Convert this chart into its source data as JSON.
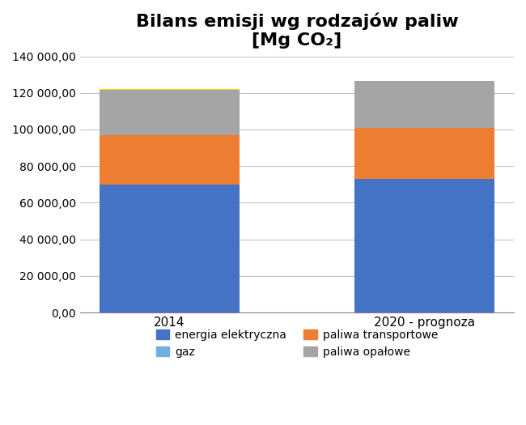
{
  "categories": [
    "2014",
    "2020 - prognoza"
  ],
  "energia_elektryczna": [
    70000,
    73000
  ],
  "gaz": [
    500,
    0
  ],
  "paliwa_transportowe": [
    27000,
    28000
  ],
  "paliwa_opalowe": [
    24500,
    25500
  ],
  "colors": {
    "energia_elektryczna": "#4472C4",
    "gaz": "#70AD47",
    "paliwa_transportowe": "#ED7D31",
    "paliwa_opalowe": "#A5A5A5"
  },
  "gaz_legend_color": "#70B0E0",
  "title_line1": "Bilans emisji wg rodzajów paliw",
  "title_line2": "[Mg CO₂]",
  "ylim": [
    0,
    140000
  ],
  "yticks": [
    0,
    20000,
    40000,
    60000,
    80000,
    100000,
    120000,
    140000
  ],
  "ytick_labels": [
    "0,00",
    "20 000,00",
    "40 000,00",
    "60 000,00",
    "80 000,00",
    "100 000,00",
    "120 000,00",
    "140 000,00"
  ],
  "bar_width": 0.55,
  "figure_bg": "#FFFFFF",
  "axes_bg": "#FFFFFF",
  "border_color": "#808080"
}
